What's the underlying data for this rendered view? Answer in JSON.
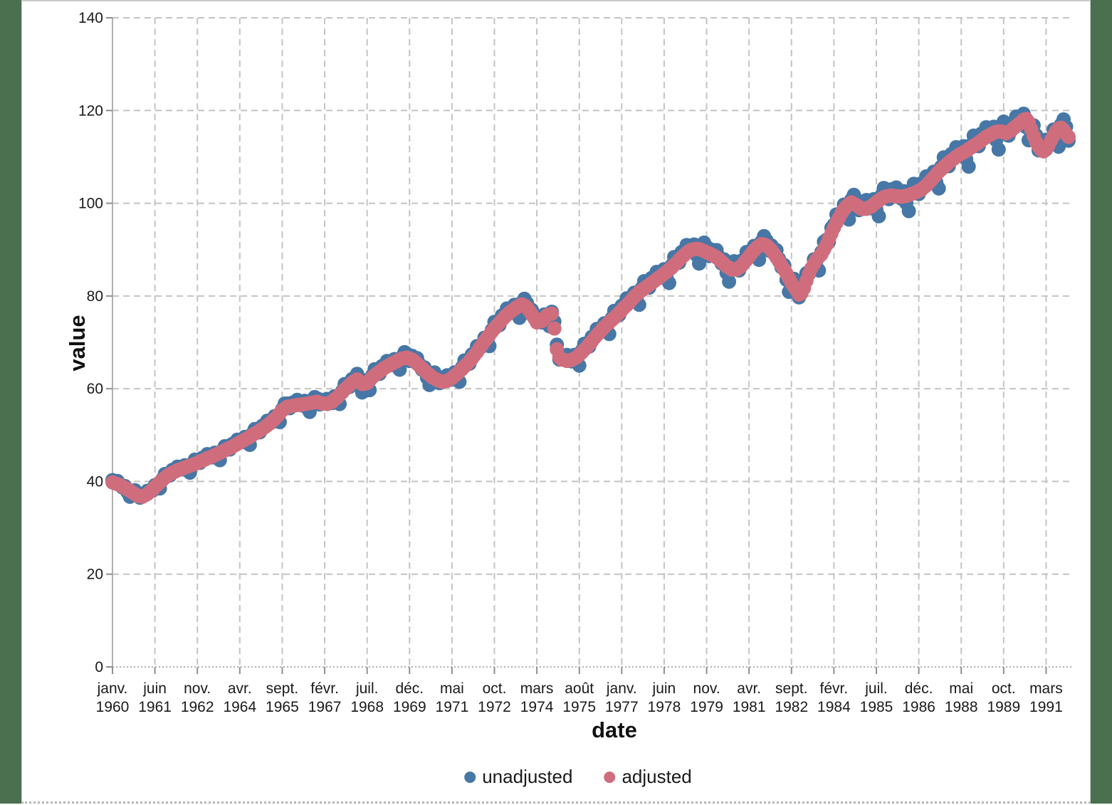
{
  "page": {
    "side_bar_color": "#4a7050",
    "background": "#ffffff",
    "gridline_color": "#c4c4c4",
    "axis_color": "#b0b0b0",
    "tick_text_color": "#1a1a1a"
  },
  "chart_data": {
    "type": "scatter",
    "title": "",
    "xlabel": "date",
    "ylabel": "value",
    "x_unit": "monthly, janv. 1960 – déc. 1991",
    "x_points": 384,
    "ylim": [
      0,
      140
    ],
    "y_ticks": [
      0,
      20,
      40,
      60,
      80,
      100,
      120,
      140
    ],
    "grid": "dashed",
    "legend_position": "bottom",
    "x_ticks": [
      {
        "pos": 0,
        "month": "janv.",
        "year": "1960"
      },
      {
        "pos": 17,
        "month": "juin",
        "year": "1961"
      },
      {
        "pos": 34,
        "month": "nov.",
        "year": "1962"
      },
      {
        "pos": 51,
        "month": "avr.",
        "year": "1964"
      },
      {
        "pos": 68,
        "month": "sept.",
        "year": "1965"
      },
      {
        "pos": 85,
        "month": "févr.",
        "year": "1967"
      },
      {
        "pos": 102,
        "month": "juil.",
        "year": "1968"
      },
      {
        "pos": 119,
        "month": "déc.",
        "year": "1969"
      },
      {
        "pos": 136,
        "month": "mai",
        "year": "1971"
      },
      {
        "pos": 153,
        "month": "oct.",
        "year": "1972"
      },
      {
        "pos": 170,
        "month": "mars",
        "year": "1974"
      },
      {
        "pos": 187,
        "month": "août",
        "year": "1975"
      },
      {
        "pos": 204,
        "month": "janv.",
        "year": "1977"
      },
      {
        "pos": 221,
        "month": "juin",
        "year": "1978"
      },
      {
        "pos": 238,
        "month": "nov.",
        "year": "1979"
      },
      {
        "pos": 255,
        "month": "avr.",
        "year": "1981"
      },
      {
        "pos": 272,
        "month": "sept.",
        "year": "1982"
      },
      {
        "pos": 289,
        "month": "févr.",
        "year": "1984"
      },
      {
        "pos": 306,
        "month": "juil.",
        "year": "1985"
      },
      {
        "pos": 323,
        "month": "déc.",
        "year": "1986"
      },
      {
        "pos": 340,
        "month": "mai",
        "year": "1988"
      },
      {
        "pos": 357,
        "month": "oct.",
        "year": "1989"
      },
      {
        "pos": 374,
        "month": "mars",
        "year": "1991"
      }
    ],
    "series": [
      {
        "name": "unadjusted",
        "color": "#4677a6",
        "values": [
          40.3,
          39.9,
          40.1,
          39.4,
          38.7,
          39.0,
          37.7,
          36.7,
          37.8,
          38.1,
          37.4,
          36.5,
          37.2,
          37.3,
          38.0,
          38.0,
          38.0,
          39.2,
          38.7,
          38.5,
          40.5,
          41.6,
          41.7,
          41.3,
          42.5,
          42.4,
          43.2,
          42.8,
          42.6,
          43.5,
          42.5,
          41.9,
          43.8,
          44.7,
          44.6,
          44.0,
          45.1,
          45.0,
          45.9,
          45.5,
          45.2,
          46.2,
          45.2,
          44.6,
          46.7,
          47.6,
          47.6,
          46.9,
          48.1,
          48.2,
          49.0,
          48.7,
          48.5,
          49.6,
          48.5,
          47.9,
          50.3,
          51.3,
          51.2,
          50.6,
          52.0,
          52.1,
          53.1,
          52.8,
          52.8,
          54.1,
          53.1,
          52.8,
          55.6,
          56.8,
          56.8,
          55.8,
          57.0,
          56.8,
          57.6,
          56.8,
          56.4,
          57.4,
          55.9,
          55.0,
          57.3,
          58.2,
          57.9,
          56.6,
          57.6,
          57.2,
          57.8,
          57.3,
          56.9,
          58.4,
          57.2,
          56.7,
          59.5,
          61.0,
          61.1,
          60.4,
          62.1,
          62.1,
          63.2,
          61.9,
          59.2,
          61.8,
          60.2,
          59.7,
          62.8,
          64.2,
          64.1,
          63.2,
          64.9,
          65.0,
          66.0,
          65.5,
          65.1,
          66.4,
          65.0,
          64.1,
          66.9,
          67.9,
          67.5,
          66.0,
          67.1,
          66.4,
          66.6,
          65.3,
          64.1,
          64.6,
          62.4,
          60.8,
          62.9,
          63.5,
          62.7,
          61.2,
          62.3,
          62.1,
          62.9,
          62.4,
          62.0,
          63.5,
          62.2,
          61.5,
          64.6,
          66.1,
          66.1,
          65.4,
          67.4,
          67.7,
          69.2,
          69.1,
          69.1,
          71.0,
          69.8,
          69.2,
          72.7,
          74.4,
          74.5,
          73.7,
          75.8,
          75.9,
          77.3,
          76.8,
          76.5,
          78.1,
          76.4,
          75.3,
          78.6,
          79.4,
          78.5,
          76.3,
          77.0,
          75.7,
          75.7,
          74.9,
          74.3,
          76.0,
          74.6,
          73.5,
          76.6,
          74.5,
          69.5,
          66.3,
          67.2,
          66.7,
          67.3,
          66.5,
          65.9,
          67.3,
          65.7,
          65.0,
          68.2,
          69.7,
          69.8,
          69.1,
          71.2,
          71.4,
          72.9,
          72.5,
          72.4,
          74.1,
          72.6,
          71.8,
          75.2,
          76.8,
          76.8,
          75.9,
          77.9,
          78.1,
          79.5,
          79.1,
          78.9,
          80.7,
          79.0,
          78.1,
          81.7,
          83.2,
          83.0,
          81.8,
          83.9,
          83.8,
          85.2,
          84.5,
          84.0,
          85.8,
          83.9,
          82.8,
          86.6,
          88.4,
          88.3,
          87.2,
          89.5,
          89.4,
          91.0,
          90.2,
          89.6,
          91.1,
          88.8,
          87.0,
          90.4,
          91.5,
          90.6,
          88.6,
          90.0,
          89.2,
          89.9,
          88.4,
          87.0,
          87.9,
          85.0,
          83.1,
          86.2,
          87.5,
          86.8,
          85.5,
          87.6,
          87.8,
          89.5,
          89.0,
          88.8,
          90.8,
          89.0,
          87.8,
          91.7,
          92.9,
          92.0,
          89.8,
          90.9,
          89.7,
          89.9,
          88.0,
          86.2,
          86.7,
          83.5,
          80.9,
          83.3,
          83.7,
          82.3,
          79.7,
          81.7,
          82.3,
          84.9,
          85.2,
          85.6,
          87.9,
          86.4,
          85.5,
          89.5,
          91.7,
          92.1,
          91.7,
          94.7,
          95.4,
          97.6,
          97.4,
          97.4,
          99.7,
          97.8,
          96.5,
          100.8,
          101.8,
          100.8,
          98.5,
          100.1,
          99.5,
          100.7,
          99.7,
          98.9,
          100.9,
          98.6,
          97.2,
          101.6,
          103.3,
          102.8,
          100.9,
          103.0,
          102.3,
          103.4,
          102.1,
          101.0,
          102.6,
          100.0,
          98.3,
          102.6,
          104.2,
          103.7,
          102.0,
          104.3,
          104.2,
          105.8,
          105.0,
          104.5,
          106.8,
          104.5,
          103.2,
          107.9,
          109.9,
          109.7,
          108.0,
          110.6,
          110.4,
          112.1,
          111.0,
          110.2,
          112.3,
          109.5,
          107.9,
          112.6,
          114.6,
          114.1,
          112.3,
          115.0,
          114.7,
          116.4,
          115.3,
          114.4,
          116.5,
          113.6,
          111.6,
          116.2,
          117.6,
          116.6,
          114.6,
          117.2,
          117.0,
          118.7,
          117.8,
          117.0,
          119.3,
          116.4,
          113.6,
          116.7,
          116.8,
          114.7,
          111.4,
          113.0,
          112.0,
          113.7,
          113.2,
          113.1,
          115.9,
          113.7,
          112.2,
          117.0,
          118.1,
          116.5,
          113.5
        ]
      },
      {
        "name": "adjusted",
        "color": "#d06d7c",
        "values": [
          39.8,
          39.6,
          39.4,
          39.2,
          38.9,
          38.6,
          38.3,
          38.0,
          37.6,
          37.3,
          36.9,
          36.8,
          36.7,
          37.0,
          37.3,
          37.8,
          38.2,
          38.8,
          39.3,
          39.8,
          40.3,
          40.8,
          41.2,
          41.6,
          41.9,
          42.1,
          42.4,
          42.6,
          42.8,
          43.0,
          43.2,
          43.4,
          43.6,
          43.8,
          44.0,
          44.3,
          44.5,
          44.7,
          45.0,
          45.2,
          45.4,
          45.7,
          45.9,
          46.2,
          46.4,
          46.7,
          47.0,
          47.2,
          47.5,
          47.8,
          48.1,
          48.4,
          48.7,
          49.0,
          49.3,
          49.6,
          50.0,
          50.3,
          50.6,
          51.0,
          51.3,
          51.7,
          52.1,
          52.5,
          53.0,
          53.5,
          54.0,
          54.7,
          55.3,
          55.7,
          56.1,
          56.2,
          56.3,
          56.4,
          56.5,
          56.5,
          56.6,
          56.7,
          56.8,
          56.9,
          57.0,
          57.1,
          57.2,
          57.0,
          56.8,
          56.8,
          56.7,
          57.0,
          57.2,
          57.7,
          58.1,
          58.7,
          59.2,
          59.8,
          60.3,
          60.8,
          61.3,
          61.7,
          62.0,
          61.5,
          61.0,
          61.1,
          61.2,
          61.8,
          62.4,
          62.9,
          63.3,
          63.7,
          64.1,
          64.5,
          64.8,
          65.1,
          65.4,
          65.7,
          66.0,
          66.3,
          66.5,
          66.6,
          66.7,
          66.5,
          66.3,
          65.9,
          65.4,
          64.9,
          64.4,
          63.9,
          63.4,
          63.0,
          62.5,
          62.2,
          61.9,
          61.7,
          61.5,
          61.6,
          61.7,
          62.0,
          62.3,
          62.8,
          63.2,
          63.7,
          64.2,
          64.8,
          65.3,
          65.9,
          66.5,
          67.2,
          67.9,
          68.7,
          69.4,
          70.2,
          70.9,
          71.6,
          72.3,
          73.0,
          73.6,
          74.2,
          74.8,
          75.4,
          75.9,
          76.4,
          76.8,
          77.2,
          77.6,
          77.9,
          78.2,
          77.9,
          77.5,
          76.8,
          76.0,
          75.2,
          74.3,
          74.5,
          74.6,
          75.2,
          75.8,
          76.0,
          76.2,
          73.0,
          68.5,
          66.8,
          66.3,
          66.2,
          66.0,
          66.1,
          66.2,
          66.5,
          66.8,
          67.3,
          67.8,
          68.4,
          68.9,
          69.6,
          70.2,
          70.9,
          71.5,
          72.1,
          72.7,
          73.3,
          73.8,
          74.3,
          74.8,
          75.3,
          75.8,
          76.4,
          76.9,
          77.5,
          78.0,
          78.6,
          79.2,
          79.8,
          80.3,
          80.8,
          81.2,
          81.6,
          82.0,
          82.4,
          82.8,
          83.2,
          83.6,
          84.0,
          84.4,
          84.8,
          85.2,
          85.7,
          86.1,
          86.7,
          87.2,
          87.8,
          88.3,
          88.8,
          89.3,
          89.7,
          90.0,
          90.1,
          90.2,
          90.1,
          89.9,
          89.7,
          89.4,
          89.2,
          88.9,
          88.6,
          88.3,
          87.9,
          87.4,
          86.9,
          86.4,
          86.1,
          85.7,
          85.7,
          85.7,
          86.1,
          86.5,
          87.2,
          87.8,
          88.5,
          89.2,
          89.8,
          90.4,
          90.8,
          91.2,
          91.1,
          90.9,
          90.4,
          89.8,
          89.1,
          88.3,
          87.5,
          86.6,
          85.7,
          84.8,
          83.8,
          82.8,
          82.0,
          81.2,
          80.3,
          80.6,
          81.7,
          83.3,
          84.7,
          86.0,
          86.9,
          87.8,
          88.4,
          89.0,
          90.0,
          91.0,
          92.3,
          93.5,
          94.7,
          95.8,
          96.8,
          97.8,
          98.6,
          99.3,
          99.8,
          100.2,
          99.9,
          99.6,
          99.2,
          98.8,
          98.8,
          98.8,
          99.1,
          99.3,
          99.8,
          100.2,
          100.6,
          101.0,
          101.3,
          101.5,
          101.6,
          101.7,
          101.6,
          101.5,
          101.5,
          101.4,
          101.5,
          101.6,
          101.8,
          102.0,
          102.2,
          102.4,
          102.7,
          102.9,
          103.4,
          103.8,
          104.4,
          105.0,
          105.6,
          106.2,
          106.8,
          107.3,
          107.8,
          108.3,
          108.8,
          109.2,
          109.6,
          110.0,
          110.4,
          110.7,
          111.0,
          111.3,
          111.7,
          112.0,
          112.4,
          112.7,
          113.1,
          113.5,
          113.9,
          114.3,
          114.6,
          114.9,
          115.2,
          115.4,
          115.5,
          115.5,
          115.3,
          115.1,
          115.4,
          115.7,
          116.2,
          116.6,
          117.1,
          117.5,
          118.0,
          118.2,
          117.5,
          116.0,
          114.5,
          113.2,
          112.2,
          111.5,
          111.2,
          111.6,
          112.5,
          113.6,
          114.6,
          115.5,
          116.1,
          116.3,
          115.8,
          115.0,
          114.3
        ]
      }
    ]
  }
}
